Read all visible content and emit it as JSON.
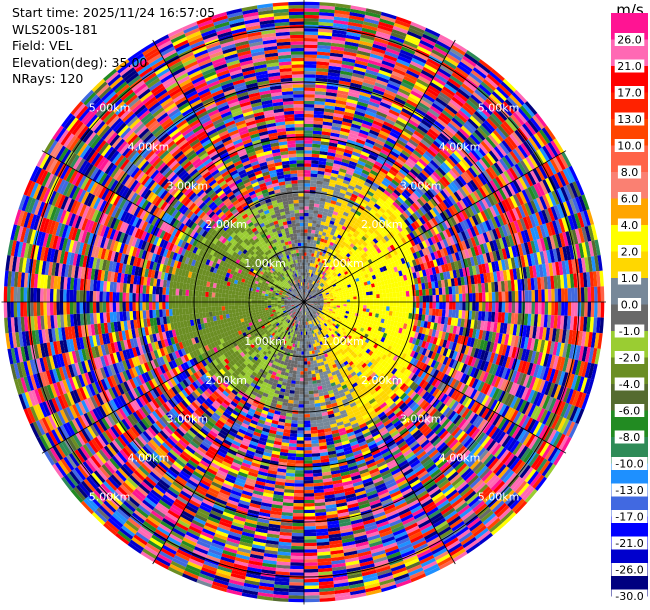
{
  "info": {
    "start_time": "Start time: 2025/11/24 16:57:05",
    "site": "WLS200s-181",
    "field": "Field: VEL",
    "elevation": "Elevation(deg): 35.00",
    "nrays": "NRays: 120"
  },
  "chart_data": {
    "type": "heatmap",
    "projection": "polar-ppi",
    "field": "VEL",
    "units": "m/s",
    "elevation_deg": 35.0,
    "n_rays": 120,
    "range_km": [
      0,
      5.5
    ],
    "range_rings_km": [
      1,
      2,
      3,
      4,
      5
    ],
    "range_ring_labels": [
      "1.00km",
      "2.00km",
      "3.00km",
      "4.00km",
      "5.00km"
    ],
    "radial_lines_deg": [
      0,
      30,
      60,
      90,
      120,
      150,
      180,
      210,
      240,
      270,
      300,
      330
    ],
    "pattern_description": "near-field (< ~2.2 km) coherent velocities: positive (yellow) on the east side, negative (green/olive) on the west side, near-zero (gray) at centre; far field is noisy/random across the full colour range",
    "colorbar": {
      "unit_label": "m/s",
      "tick_labels": [
        "26.0",
        "21.0",
        "17.0",
        "13.0",
        "10.0",
        "8.0",
        "6.0",
        "4.0",
        "2.0",
        "1.0",
        "0.0",
        "-1.0",
        "-2.0",
        "-4.0",
        "-6.0",
        "-8.0",
        "-10.0",
        "-13.0",
        "-17.0",
        "-21.0",
        "-26.0",
        "-30.0"
      ],
      "bins": [
        {
          "min": 26,
          "max": 30,
          "color": "#ff1493"
        },
        {
          "min": 21,
          "max": 26,
          "color": "#ff69b4"
        },
        {
          "min": 17,
          "max": 21,
          "color": "#ff0000"
        },
        {
          "min": 13,
          "max": 17,
          "color": "#ff2200"
        },
        {
          "min": 10,
          "max": 13,
          "color": "#ff4500"
        },
        {
          "min": 8,
          "max": 10,
          "color": "#ff6347"
        },
        {
          "min": 6,
          "max": 8,
          "color": "#fa8072"
        },
        {
          "min": 4,
          "max": 6,
          "color": "#ffa500"
        },
        {
          "min": 2,
          "max": 4,
          "color": "#ffff00"
        },
        {
          "min": 1,
          "max": 2,
          "color": "#ffd700"
        },
        {
          "min": 0,
          "max": 1,
          "color": "#778899"
        },
        {
          "min": -1,
          "max": 0,
          "color": "#696969"
        },
        {
          "min": -2,
          "max": -1,
          "color": "#9acd32"
        },
        {
          "min": -4,
          "max": -2,
          "color": "#6b8e23"
        },
        {
          "min": -6,
          "max": -4,
          "color": "#556b2f"
        },
        {
          "min": -8,
          "max": -6,
          "color": "#228b22"
        },
        {
          "min": -10,
          "max": -8,
          "color": "#2e8b57"
        },
        {
          "min": -13,
          "max": -10,
          "color": "#1e90ff"
        },
        {
          "min": -17,
          "max": -13,
          "color": "#4169e1"
        },
        {
          "min": -21,
          "max": -17,
          "color": "#0000ff"
        },
        {
          "min": -26,
          "max": -21,
          "color": "#0000cd"
        },
        {
          "min": -30,
          "max": -26,
          "color": "#000080"
        }
      ]
    }
  }
}
